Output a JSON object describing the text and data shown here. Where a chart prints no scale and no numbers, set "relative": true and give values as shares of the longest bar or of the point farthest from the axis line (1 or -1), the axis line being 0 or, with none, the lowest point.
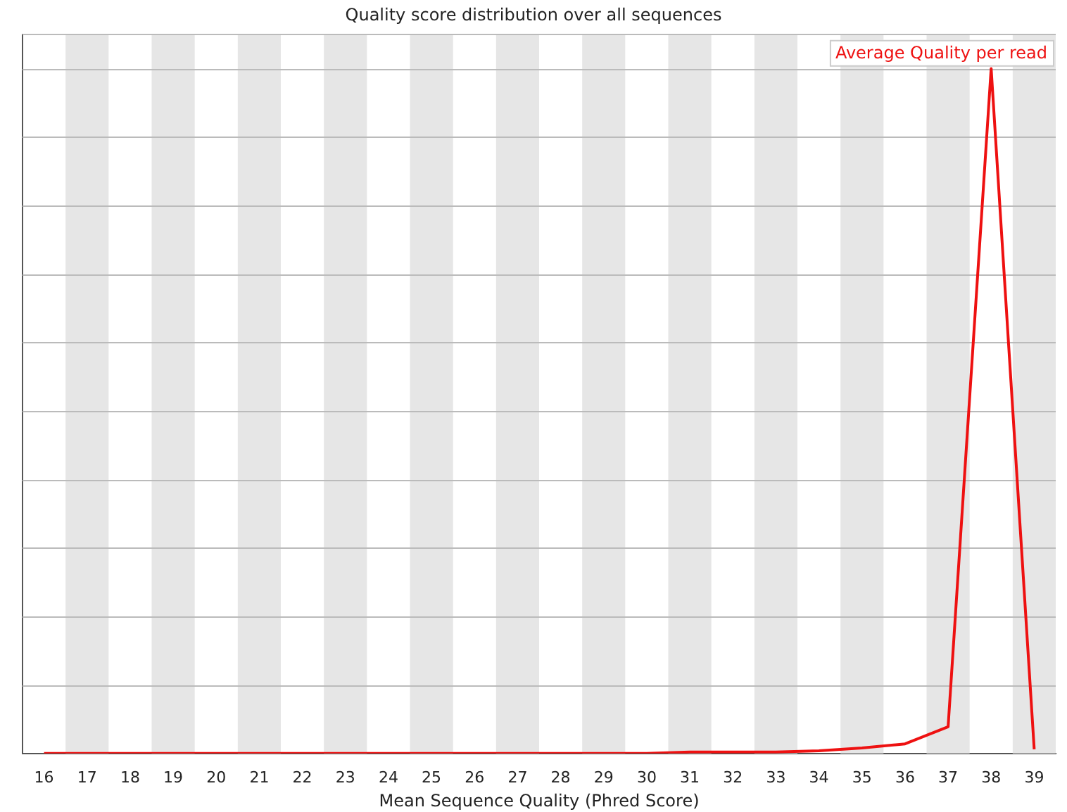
{
  "chart_data": {
    "type": "line",
    "title": "Quality score distribution over all sequences",
    "xlabel": "Mean Sequence Quality (Phred Score)",
    "relative": true,
    "categories": [
      "16",
      "17",
      "18",
      "19",
      "20",
      "21",
      "22",
      "23",
      "24",
      "25",
      "26",
      "27",
      "28",
      "29",
      "30",
      "31",
      "32",
      "33",
      "34",
      "35",
      "36",
      "37",
      "38",
      "39"
    ],
    "series": [
      {
        "name": "Average Quality per read",
        "color": "#ee1111",
        "values": [
          0,
          0,
          0,
          0,
          0,
          0,
          0,
          0,
          0,
          0,
          0,
          0,
          0,
          0,
          0,
          0.002,
          0.002,
          0.002,
          0.004,
          0.008,
          0.014,
          0.039,
          1,
          0.006
        ]
      }
    ],
    "grid": "y",
    "legend": "top right",
    "marker": "none",
    "line_style": "solid"
  }
}
